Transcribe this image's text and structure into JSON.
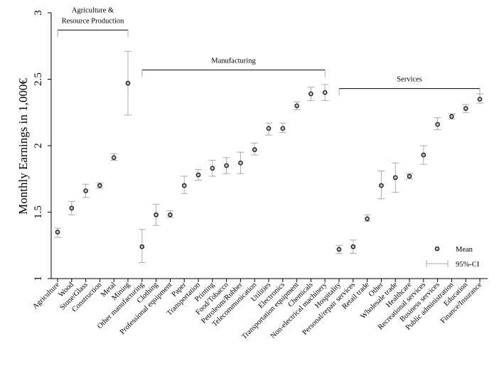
{
  "chart_data": {
    "type": "scatter",
    "ylabel": "Monthly Earnings in 1,000€",
    "ylim": [
      1,
      3
    ],
    "yticks": [
      "1",
      "1.5",
      "2",
      "2.5",
      "3"
    ],
    "categories": [
      "Agriculture",
      "Wood",
      "Stone/Glass",
      "Construction",
      "Metal",
      "Mining",
      "Other manufacturing",
      "Clothing",
      "Professional equipment",
      "Paper",
      "Transportation",
      "Printing",
      "Food/Tobacco",
      "Petroleum/Rubber",
      "Telecommunication",
      "Utilities",
      "Electronics",
      "Transportation equipment",
      "Chemicals",
      "Non-electrical machinery",
      "Hospitality",
      "Personal/repair services",
      "Retail trade",
      "Other",
      "Wholesale trade",
      "Healthcare",
      "Recreational services",
      "Business services",
      "Public administration",
      "Education",
      "Finance/Insurance"
    ],
    "mean": [
      1.35,
      1.53,
      1.66,
      1.7,
      1.91,
      2.47,
      1.24,
      1.48,
      1.48,
      1.7,
      1.78,
      1.83,
      1.85,
      1.87,
      1.97,
      2.13,
      2.13,
      2.3,
      2.39,
      2.4,
      1.22,
      1.24,
      1.45,
      1.7,
      1.76,
      1.77,
      1.93,
      2.16,
      2.22,
      2.28,
      2.35
    ],
    "ci_low": [
      1.31,
      1.48,
      1.61,
      1.68,
      1.89,
      2.23,
      1.12,
      1.4,
      1.46,
      1.64,
      1.74,
      1.77,
      1.79,
      1.79,
      1.93,
      2.08,
      2.1,
      2.27,
      2.34,
      2.34,
      1.19,
      1.19,
      1.43,
      1.6,
      1.65,
      1.75,
      1.86,
      2.12,
      2.2,
      2.25,
      2.32
    ],
    "ci_high": [
      1.38,
      1.58,
      1.71,
      1.72,
      1.94,
      2.71,
      1.37,
      1.56,
      1.51,
      1.77,
      1.82,
      1.89,
      1.91,
      1.95,
      2.02,
      2.17,
      2.17,
      2.33,
      2.44,
      2.46,
      1.25,
      1.29,
      1.48,
      1.81,
      1.87,
      1.79,
      2.0,
      2.21,
      2.24,
      2.31,
      2.39
    ],
    "groups": [
      {
        "label_lines": [
          "Agriculture &",
          "Resource Production"
        ],
        "start": 0,
        "end": 5,
        "bracket_y": 2.87
      },
      {
        "label_lines": [
          "Manufacturing"
        ],
        "start": 6,
        "end": 19,
        "bracket_y": 2.57
      },
      {
        "label_lines": [
          "Services"
        ],
        "start": 20,
        "end": 30,
        "bracket_y": 2.43
      }
    ],
    "legend": {
      "position": "bottom-right",
      "entries": [
        {
          "marker": "circle",
          "label": "Mean"
        },
        {
          "marker": "errorbar",
          "label": "95%-CI"
        }
      ]
    },
    "grid": false,
    "colors": {
      "marker_edge": "#1a1a1a",
      "marker_fill": "#c8c8c8",
      "errorbar": "#aaaaaa",
      "axis": "#000000"
    }
  }
}
